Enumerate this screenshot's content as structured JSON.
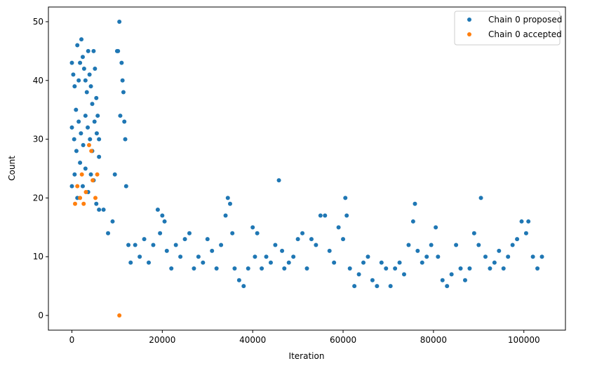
{
  "chart_data": {
    "type": "scatter",
    "title": "",
    "xlabel": "Iteration",
    "ylabel": "Count",
    "xlim": [
      -5200,
      109200
    ],
    "ylim": [
      -2.5,
      52.5
    ],
    "x_ticks": [
      0,
      20000,
      40000,
      60000,
      80000,
      100000
    ],
    "x_tick_labels": [
      "0",
      "20000",
      "40000",
      "60000",
      "80000",
      "100000"
    ],
    "y_ticks": [
      0,
      10,
      20,
      30,
      40,
      50
    ],
    "y_tick_labels": [
      "0",
      "10",
      "20",
      "30",
      "40",
      "50"
    ],
    "grid": false,
    "legend_position": "top-right",
    "series": [
      {
        "name": "Chain 0 proposed",
        "color": "#1f77b4",
        "points": [
          [
            0,
            43
          ],
          [
            300,
            41
          ],
          [
            600,
            39
          ],
          [
            900,
            35
          ],
          [
            1200,
            46
          ],
          [
            1500,
            40
          ],
          [
            1800,
            43
          ],
          [
            2100,
            47
          ],
          [
            2400,
            44
          ],
          [
            2700,
            42
          ],
          [
            3000,
            40
          ],
          [
            3300,
            38
          ],
          [
            3600,
            45
          ],
          [
            3900,
            41
          ],
          [
            4200,
            39
          ],
          [
            4500,
            36
          ],
          [
            4800,
            45
          ],
          [
            5100,
            42
          ],
          [
            5400,
            37
          ],
          [
            5700,
            34
          ],
          [
            6000,
            30
          ],
          [
            0,
            32
          ],
          [
            500,
            30
          ],
          [
            1000,
            28
          ],
          [
            1500,
            33
          ],
          [
            2000,
            31
          ],
          [
            2500,
            29
          ],
          [
            3000,
            34
          ],
          [
            3500,
            32
          ],
          [
            4000,
            30
          ],
          [
            4500,
            28
          ],
          [
            5000,
            33
          ],
          [
            5500,
            31
          ],
          [
            6000,
            27
          ],
          [
            0,
            22
          ],
          [
            600,
            24
          ],
          [
            1200,
            20
          ],
          [
            1800,
            26
          ],
          [
            2400,
            22
          ],
          [
            3000,
            25
          ],
          [
            3600,
            21
          ],
          [
            4200,
            24
          ],
          [
            4800,
            23
          ],
          [
            5400,
            19
          ],
          [
            6000,
            18
          ],
          [
            7000,
            18
          ],
          [
            8000,
            14
          ],
          [
            9000,
            16
          ],
          [
            9500,
            24
          ],
          [
            10000,
            45
          ],
          [
            10200,
            45
          ],
          [
            10500,
            50
          ],
          [
            10700,
            34
          ],
          [
            11000,
            43
          ],
          [
            11200,
            40
          ],
          [
            11400,
            38
          ],
          [
            11600,
            33
          ],
          [
            11800,
            30
          ],
          [
            12000,
            22
          ],
          [
            12500,
            12
          ],
          [
            13000,
            9
          ],
          [
            14000,
            12
          ],
          [
            15000,
            10
          ],
          [
            16000,
            13
          ],
          [
            17000,
            9
          ],
          [
            18000,
            12
          ],
          [
            19000,
            18
          ],
          [
            19500,
            14
          ],
          [
            20000,
            17
          ],
          [
            20500,
            16
          ],
          [
            21000,
            11
          ],
          [
            22000,
            8
          ],
          [
            23000,
            12
          ],
          [
            24000,
            10
          ],
          [
            25000,
            13
          ],
          [
            26000,
            14
          ],
          [
            27000,
            8
          ],
          [
            28000,
            10
          ],
          [
            29000,
            9
          ],
          [
            30000,
            13
          ],
          [
            31000,
            11
          ],
          [
            32000,
            8
          ],
          [
            33000,
            12
          ],
          [
            34000,
            17
          ],
          [
            34500,
            20
          ],
          [
            35000,
            19
          ],
          [
            35500,
            14
          ],
          [
            36000,
            8
          ],
          [
            37000,
            6
          ],
          [
            38000,
            5
          ],
          [
            39000,
            8
          ],
          [
            40000,
            15
          ],
          [
            40500,
            10
          ],
          [
            41000,
            14
          ],
          [
            42000,
            8
          ],
          [
            43000,
            10
          ],
          [
            44000,
            9
          ],
          [
            45000,
            12
          ],
          [
            45800,
            23
          ],
          [
            46500,
            11
          ],
          [
            47000,
            8
          ],
          [
            48000,
            9
          ],
          [
            49000,
            10
          ],
          [
            50000,
            13
          ],
          [
            51000,
            14
          ],
          [
            52000,
            8
          ],
          [
            53000,
            13
          ],
          [
            54000,
            12
          ],
          [
            55000,
            17
          ],
          [
            56000,
            17
          ],
          [
            57000,
            11
          ],
          [
            58000,
            9
          ],
          [
            59000,
            15
          ],
          [
            60000,
            13
          ],
          [
            60500,
            20
          ],
          [
            60800,
            17
          ],
          [
            61500,
            8
          ],
          [
            62500,
            5
          ],
          [
            63500,
            7
          ],
          [
            64500,
            9
          ],
          [
            65500,
            10
          ],
          [
            66500,
            6
          ],
          [
            67500,
            5
          ],
          [
            68500,
            9
          ],
          [
            69500,
            8
          ],
          [
            70500,
            5
          ],
          [
            71500,
            8
          ],
          [
            72500,
            9
          ],
          [
            73500,
            7
          ],
          [
            74500,
            12
          ],
          [
            75500,
            16
          ],
          [
            75900,
            19
          ],
          [
            76500,
            11
          ],
          [
            77500,
            9
          ],
          [
            78500,
            10
          ],
          [
            79500,
            12
          ],
          [
            80500,
            15
          ],
          [
            81000,
            10
          ],
          [
            82000,
            6
          ],
          [
            83000,
            5
          ],
          [
            84000,
            7
          ],
          [
            85000,
            12
          ],
          [
            86000,
            8
          ],
          [
            87000,
            6
          ],
          [
            88000,
            8
          ],
          [
            89000,
            14
          ],
          [
            90000,
            12
          ],
          [
            90500,
            20
          ],
          [
            91500,
            10
          ],
          [
            92500,
            8
          ],
          [
            93500,
            9
          ],
          [
            94500,
            11
          ],
          [
            95500,
            8
          ],
          [
            96500,
            10
          ],
          [
            97500,
            12
          ],
          [
            98500,
            13
          ],
          [
            99500,
            16
          ],
          [
            100500,
            14
          ],
          [
            101000,
            16
          ],
          [
            102000,
            10
          ],
          [
            103000,
            8
          ],
          [
            104000,
            10
          ]
        ]
      },
      {
        "name": "Chain 0 accepted",
        "color": "#ff7f0e",
        "points": [
          [
            3800,
            29
          ],
          [
            4300,
            28
          ],
          [
            2200,
            24
          ],
          [
            5600,
            24
          ],
          [
            1200,
            22
          ],
          [
            4600,
            23
          ],
          [
            3100,
            21
          ],
          [
            1800,
            20
          ],
          [
            5200,
            20
          ],
          [
            2600,
            19
          ],
          [
            700,
            19
          ],
          [
            10500,
            0
          ]
        ]
      }
    ]
  }
}
